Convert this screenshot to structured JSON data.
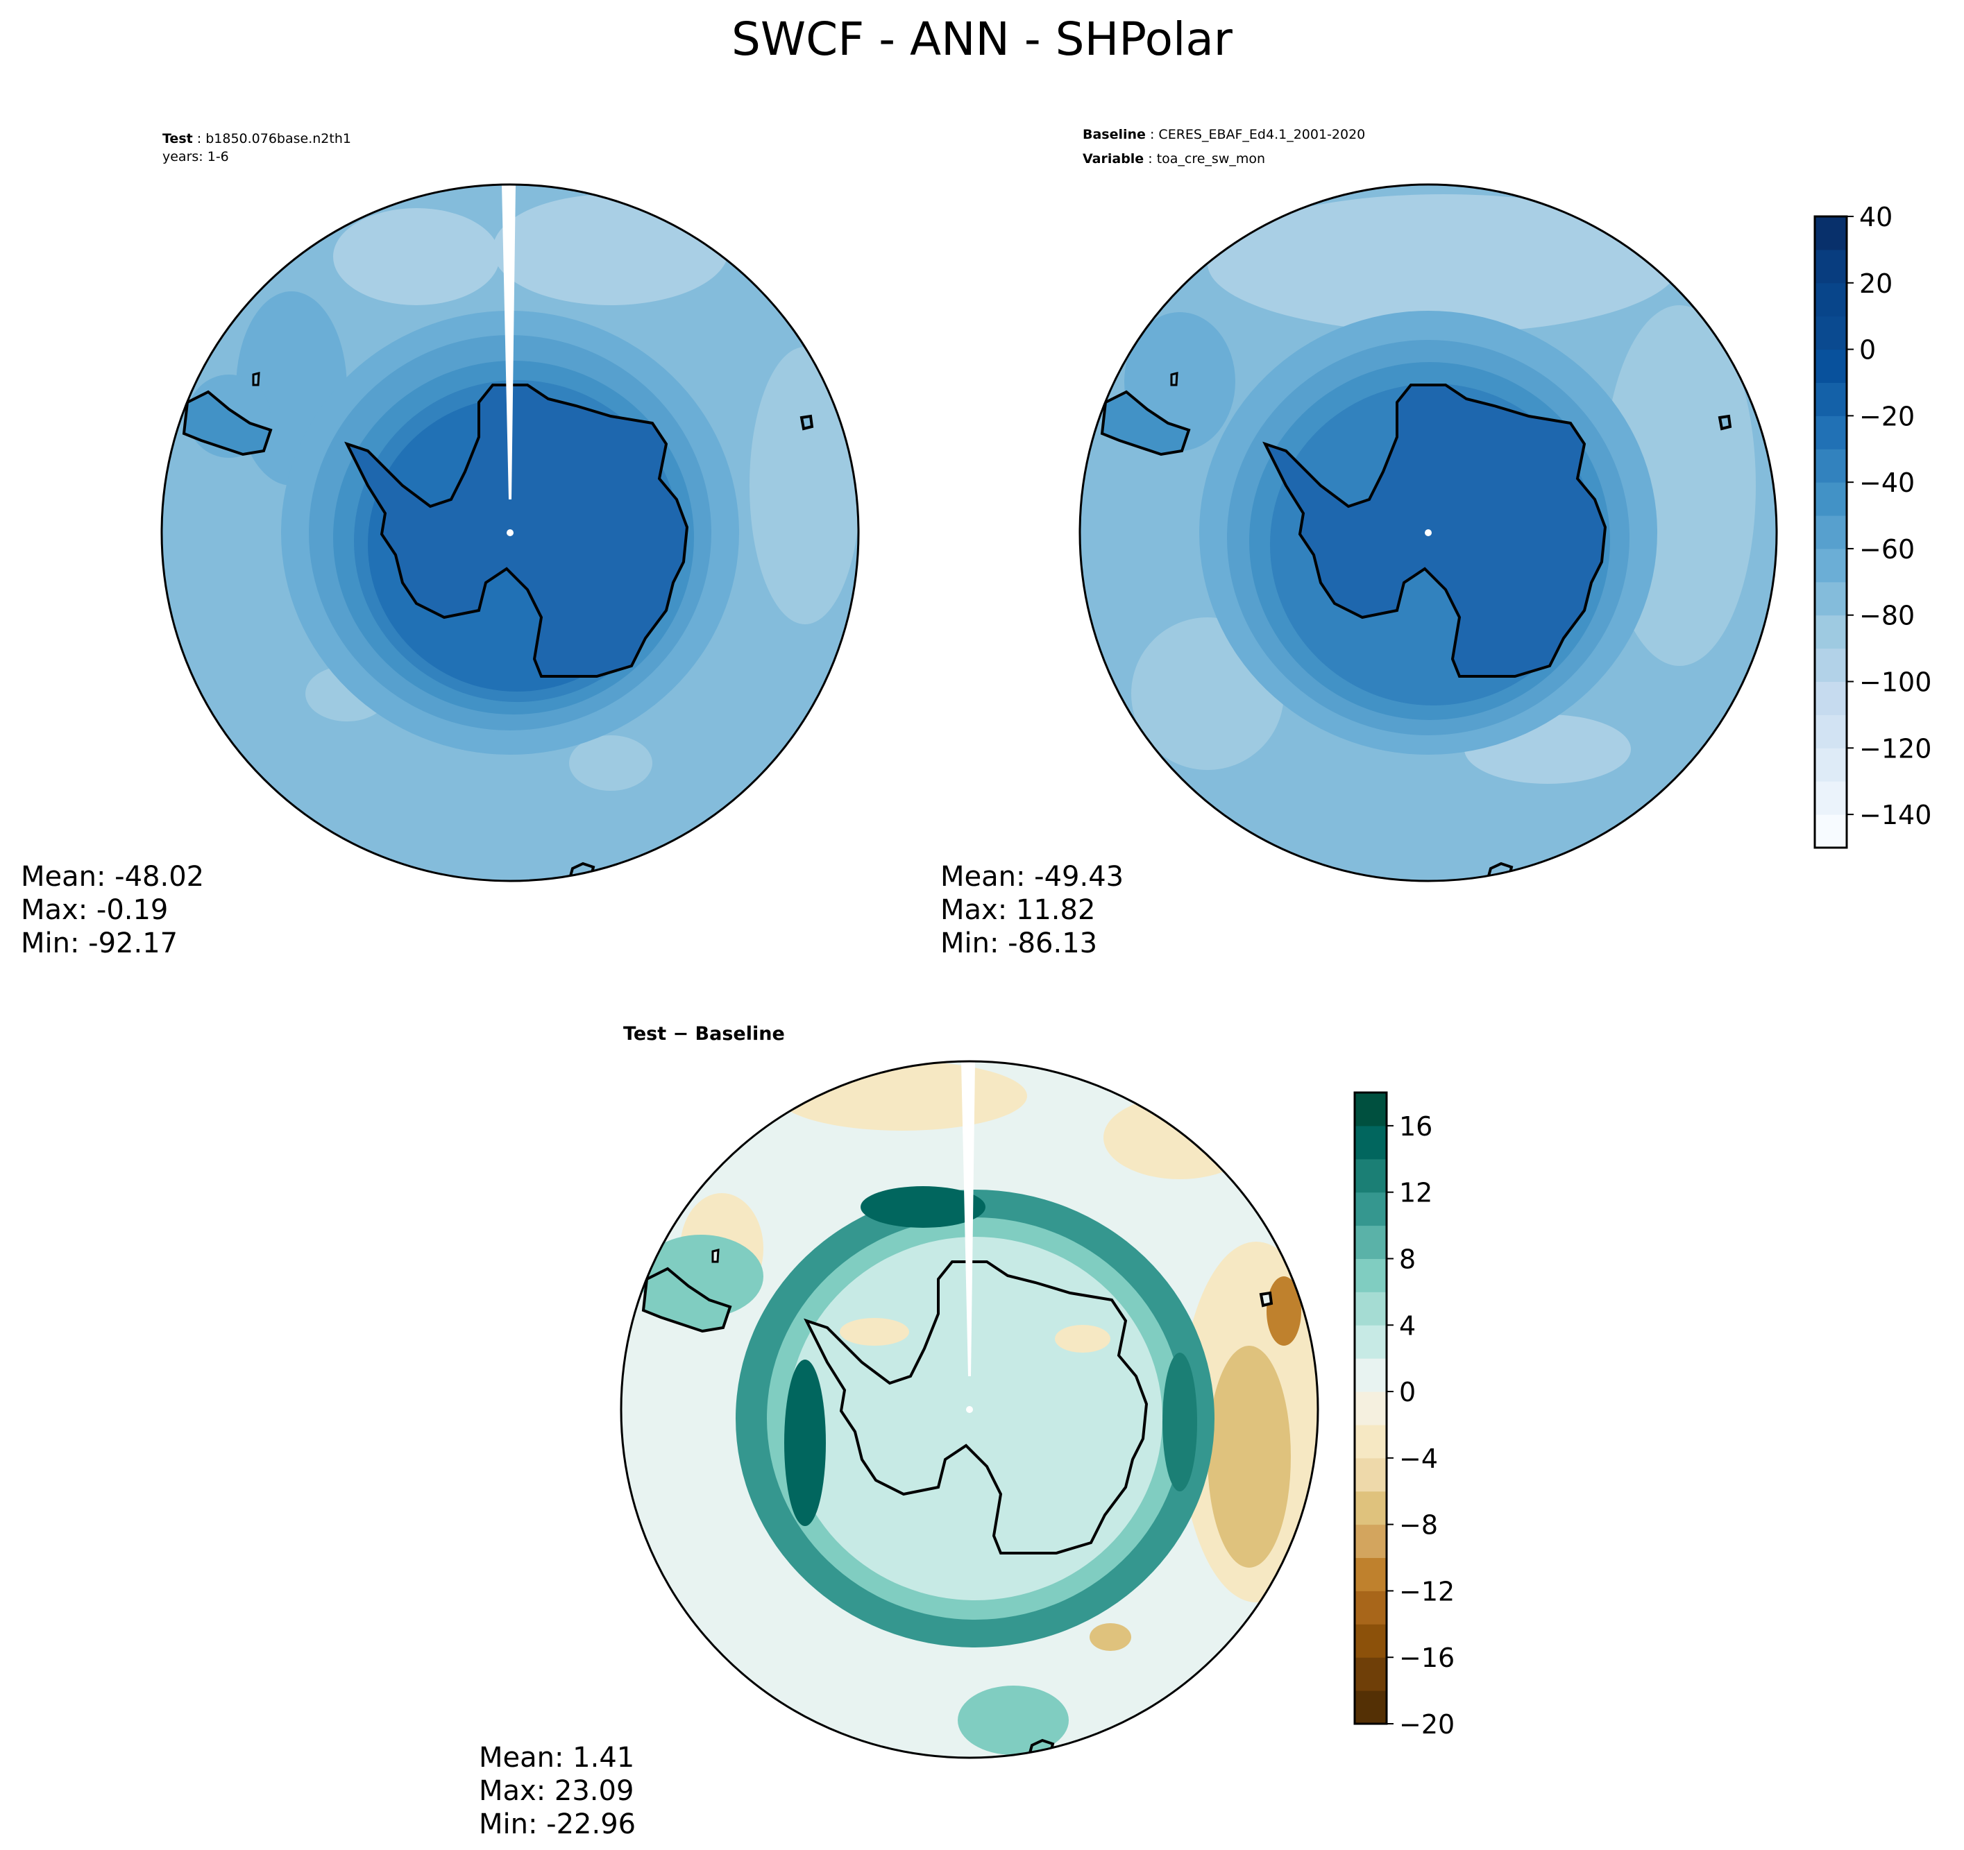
{
  "figure": {
    "title": "SWCF - ANN - SHPolar"
  },
  "panels": {
    "test": {
      "label_key": "Test",
      "label_value": "b1850.076base.n2th1",
      "years_line": "years: 1-6",
      "stats": {
        "mean": "Mean: -48.02",
        "max": "Max: -0.19",
        "min": "Min: -92.17"
      }
    },
    "baseline": {
      "label_key": "Baseline",
      "label_value": "CERES_EBAF_Ed4.1_2001-2020",
      "var_key": "Variable",
      "var_value": "toa_cre_sw_mon",
      "stats": {
        "mean": "Mean: -49.43",
        "max": "Max: 11.82",
        "min": "Min: -86.13"
      }
    },
    "diff": {
      "title": "Test − Baseline",
      "stats": {
        "mean": "Mean:  1.41",
        "max": "Max: 23.09",
        "min": "Min: -22.96"
      }
    }
  },
  "chart_data": [
    {
      "type": "heatmap",
      "name": "test",
      "projection": "south-polar-stereographic",
      "colorscale": "blues",
      "levels": [
        -150,
        -140,
        -130,
        -120,
        -110,
        -100,
        -90,
        -80,
        -70,
        -60,
        -50,
        -40,
        -30,
        -20,
        -10,
        0,
        10,
        20,
        30,
        40
      ],
      "stats": {
        "mean": -48.02,
        "max": -0.19,
        "min": -92.17
      }
    },
    {
      "type": "heatmap",
      "name": "baseline",
      "projection": "south-polar-stereographic",
      "colorscale": "blues",
      "colorbar": {
        "ticks": [
          "40",
          "20",
          "0",
          "−20",
          "−40",
          "−60",
          "−80",
          "−100",
          "−120",
          "−140"
        ],
        "range": [
          -150,
          40
        ]
      },
      "stats": {
        "mean": -49.43,
        "max": 11.82,
        "min": -86.13
      }
    },
    {
      "type": "heatmap",
      "name": "difference",
      "projection": "south-polar-stereographic",
      "colorscale": "brown-blue-green",
      "levels": [
        -20,
        -18,
        -16,
        -14,
        -12,
        -10,
        -8,
        -6,
        -4,
        -2,
        0,
        2,
        4,
        6,
        8,
        10,
        12,
        14,
        16,
        18
      ],
      "colorbar": {
        "ticks": [
          "16",
          "12",
          "8",
          "4",
          "0",
          "−4",
          "−8",
          "−12",
          "−16",
          "−20"
        ],
        "range": [
          -20,
          18
        ]
      },
      "stats": {
        "mean": 1.41,
        "max": 23.09,
        "min": -22.96
      }
    }
  ],
  "colors": {
    "blues": [
      "#f7fbff",
      "#ebf3fb",
      "#deebf7",
      "#d2e3f3",
      "#c6dbef",
      "#b2d2e8",
      "#9ecae1",
      "#84bcdb",
      "#6baed6",
      "#57a0ce",
      "#4292c6",
      "#3282be",
      "#2171b5",
      "#1461a8",
      "#08519c",
      "#0a4a90",
      "#08458a",
      "#083d7f",
      "#08306b"
    ],
    "brbg": [
      "#543005",
      "#6f3f08",
      "#8c510a",
      "#a8661a",
      "#bf812d",
      "#d3a55e",
      "#dfc27d",
      "#eed9aa",
      "#f6e8c3",
      "#f5f0df",
      "#e8f3f1",
      "#c7eae5",
      "#a5dcd3",
      "#80cdc1",
      "#5ab2a8",
      "#35978f",
      "#1b7f75",
      "#01665e",
      "#00503f"
    ]
  }
}
